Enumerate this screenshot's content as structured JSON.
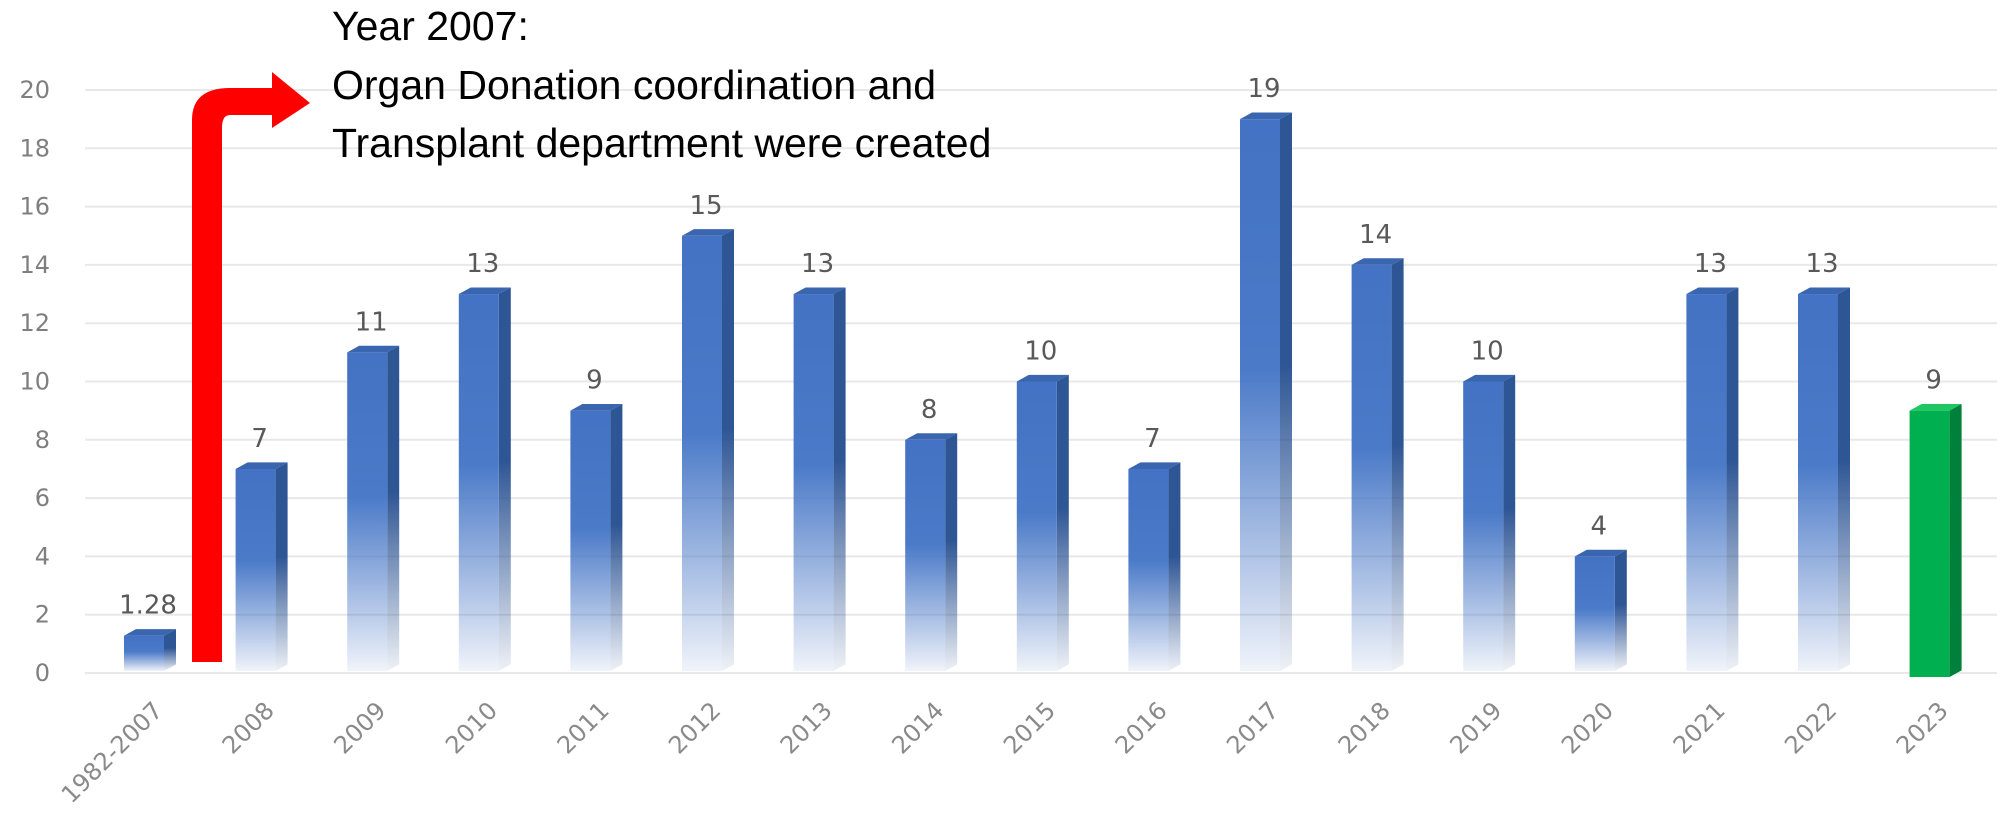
{
  "chart_data": {
    "type": "bar",
    "categories": [
      "1982-2007",
      "2008",
      "2009",
      "2010",
      "2011",
      "2012",
      "2013",
      "2014",
      "2015",
      "2016",
      "2017",
      "2018",
      "2019",
      "2020",
      "2021",
      "2022",
      "2023"
    ],
    "values": [
      1.28,
      7,
      11,
      13,
      9,
      15,
      13,
      8,
      10,
      7,
      19,
      14,
      10,
      4,
      13,
      13,
      9
    ],
    "data_labels": [
      "1.28",
      "7",
      "11",
      "13",
      "9",
      "15",
      "13",
      "8",
      "10",
      "7",
      "19",
      "14",
      "10",
      "4",
      "13",
      "13",
      "9"
    ],
    "title": "",
    "xlabel": "",
    "ylabel": "",
    "ylim": [
      0,
      20
    ],
    "yticks": [
      "0",
      "2",
      "4",
      "6",
      "8",
      "10",
      "12",
      "14",
      "16",
      "18",
      "20"
    ],
    "grid": true,
    "legend": "none",
    "colors": {
      "bar": "#4472c4",
      "bar_side": "#2e5594",
      "highlight_bar": "#00b050",
      "highlight_side": "#00803a",
      "arrow": "#ff0000",
      "grid": "#e8e8e8"
    },
    "highlight_category": "2023",
    "annotation": {
      "lines": [
        "Year 2007:",
        "Organ Donation coordination and",
        "Transplant department were created"
      ]
    }
  }
}
